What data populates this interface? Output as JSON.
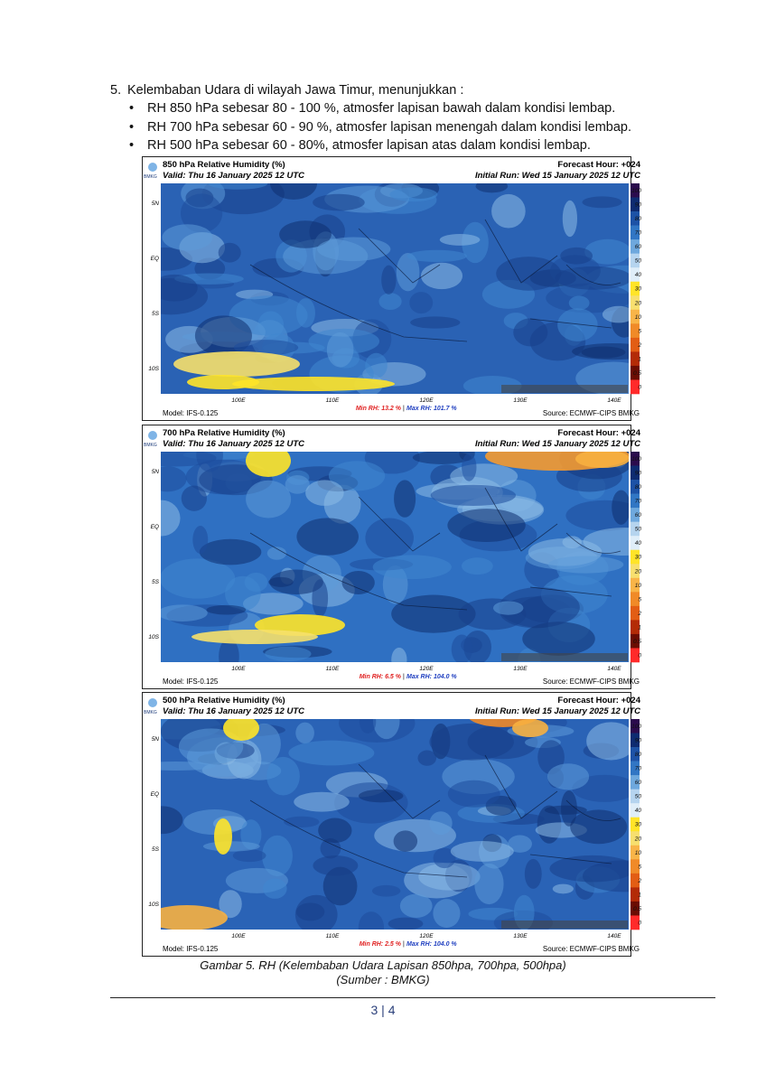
{
  "item": {
    "number": "5.",
    "text": "Kelembaban Udara di wilayah Jawa Timur, menunjukkan :",
    "bullets": [
      "RH 850 hPa sebesar 80 - 100 %, atmosfer lapisan bawah dalam kondisi lembap.",
      "RH 700 hPa sebesar 60 - 90 %, atmosfer lapisan menengah dalam kondisi lembap.",
      "RH 500 hPa sebesar 60 - 80%, atmosfer lapisan atas dalam kondisi lembap."
    ]
  },
  "maps": [
    {
      "title": "850 hPa Relative Humidity (%)",
      "valid": "Valid: Thu 16 January 2025 12 UTC",
      "forecast": "Forecast Hour: +024",
      "initial_run": "Initial Run: Wed 15 January 2025 12 UTC",
      "model": "Model: IFS-0.125",
      "min_rh": "Min RH:  13.2 %",
      "max_rh": "Max RH: 101.7 %",
      "source": "Source: ECMWF-CIPS BMKG"
    },
    {
      "title": "700 hPa Relative Humidity (%)",
      "valid": "Valid: Thu 16 January 2025 12 UTC",
      "forecast": "Forecast Hour: +024",
      "initial_run": "Initial Run: Wed 15 January 2025 12 UTC",
      "model": "Model: IFS-0.125",
      "min_rh": "Min RH:  6.5 %",
      "max_rh": "Max RH: 104.0 %",
      "source": "Source: ECMWF-CIPS BMKG"
    },
    {
      "title": "500 hPa Relative Humidity (%)",
      "valid": "Valid: Thu 16 January 2025 12 UTC",
      "forecast": "Forecast Hour: +024",
      "initial_run": "Initial Run: Wed 15 January 2025 12 UTC",
      "model": "Model: IFS-0.125",
      "min_rh": "Min RH:  2.5 %",
      "max_rh": "Max RH: 104.0 %",
      "source": "Source: ECMWF-CIPS BMKG"
    }
  ],
  "logo": "BMKG",
  "lat_labels": [
    "5N",
    "EQ",
    "5S",
    "10S"
  ],
  "lon_labels": [
    "100E",
    "110E",
    "120E",
    "130E",
    "140E"
  ],
  "colorbar_labels": [
    "100",
    "90",
    "80",
    "70",
    "60",
    "50",
    "40",
    "30",
    "20",
    "10",
    "5",
    "2",
    "1",
    "0.5",
    "0"
  ],
  "caption": [
    "Gambar 5. RH (Kelembaban Udara Lapisan 850hpa, 700hpa, 500hpa)",
    "(Sumber : BMKG)"
  ],
  "footer": {
    "page": "3 | 4"
  }
}
